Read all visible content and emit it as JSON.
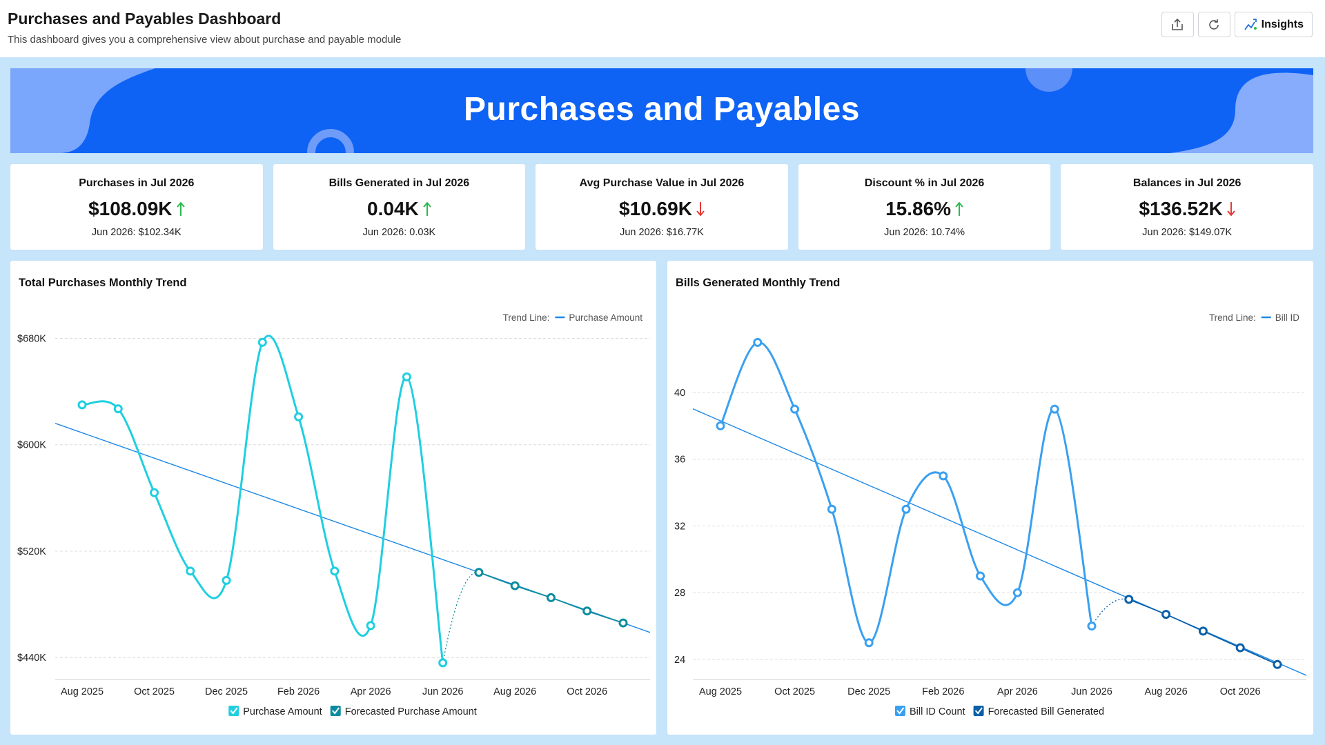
{
  "header": {
    "title": "Purchases and Payables Dashboard",
    "subtitle": "This dashboard gives you a comprehensive view about purchase and payable module",
    "insights_button": "Insights"
  },
  "banner": {
    "title": "Purchases and Payables"
  },
  "kpis": [
    {
      "title": "Purchases in Jul 2026",
      "value": "$108.09K",
      "trend": "up",
      "comparison": "Jun 2026: $102.34K"
    },
    {
      "title": "Bills Generated in Jul 2026",
      "value": "0.04K",
      "trend": "up",
      "comparison": "Jun 2026: 0.03K"
    },
    {
      "title": "Avg Purchase Value in Jul 2026",
      "value": "$10.69K",
      "trend": "down",
      "comparison": "Jun 2026: $16.77K"
    },
    {
      "title": "Discount % in Jul 2026",
      "value": "15.86%",
      "trend": "up",
      "comparison": "Jun 2026: 10.74%"
    },
    {
      "title": "Balances in Jul 2026",
      "value": "$136.52K",
      "trend": "down",
      "comparison": "Jun 2026: $149.07K"
    }
  ],
  "chart_data": [
    {
      "type": "line",
      "title": "Total Purchases Monthly Trend",
      "categories": [
        "Aug 2025",
        null,
        "Oct 2025",
        null,
        "Dec 2025",
        null,
        "Feb 2026",
        null,
        "Apr 2026",
        null,
        "Jun 2026",
        null,
        "Aug 2026",
        null,
        "Oct 2026",
        null
      ],
      "series": [
        {
          "name": "Purchase Amount",
          "color": "#1fcfe0",
          "values": [
            630000,
            627000,
            564000,
            505000,
            498000,
            677000,
            621000,
            505000,
            464000,
            651000,
            436000,
            null,
            null,
            null,
            null,
            null
          ]
        },
        {
          "name": "Forecasted Purchase Amount",
          "color": "#0b8c9e",
          "values": [
            null,
            null,
            null,
            null,
            null,
            null,
            null,
            null,
            null,
            null,
            null,
            504000,
            494000,
            485000,
            475000,
            466000
          ]
        }
      ],
      "trend_line": {
        "label": "Trend Line:",
        "name": "Purchase Amount",
        "color": "#1e88e5",
        "values": [
          609000,
          466000
        ]
      },
      "ylim": [
        423500,
        687000
      ],
      "yticks": [
        {
          "value": 440000,
          "label": "$440K"
        },
        {
          "value": 520000,
          "label": "$520K"
        },
        {
          "value": 600000,
          "label": "$600K"
        },
        {
          "value": 680000,
          "label": "$680K"
        }
      ],
      "grid": true
    },
    {
      "type": "line",
      "title": "Bills Generated Monthly Trend",
      "categories": [
        "Aug 2025",
        null,
        "Oct 2025",
        null,
        "Dec 2025",
        null,
        "Feb 2026",
        null,
        "Apr 2026",
        null,
        "Jun 2026",
        null,
        "Aug 2026",
        null,
        "Oct 2026",
        null
      ],
      "series": [
        {
          "name": "Bill ID Count",
          "color": "#3aa0f0",
          "values": [
            38,
            43,
            39,
            33,
            25,
            33,
            35,
            29,
            28,
            39,
            26,
            null,
            null,
            null,
            null,
            null
          ]
        },
        {
          "name": "Forecasted Bill Generated",
          "color": "#0b5fa8",
          "values": [
            null,
            null,
            null,
            null,
            null,
            null,
            null,
            null,
            null,
            null,
            null,
            27.6,
            26.7,
            25.7,
            24.7,
            23.7
          ]
        }
      ],
      "trend_line": {
        "label": "Trend Line:",
        "name": "Bill ID",
        "color": "#1e88e5",
        "values": [
          38.3,
          23.8
        ]
      },
      "ylim": [
        22.8,
        43.8
      ],
      "yticks": [
        24,
        28,
        32,
        36,
        40
      ],
      "grid": true
    }
  ]
}
